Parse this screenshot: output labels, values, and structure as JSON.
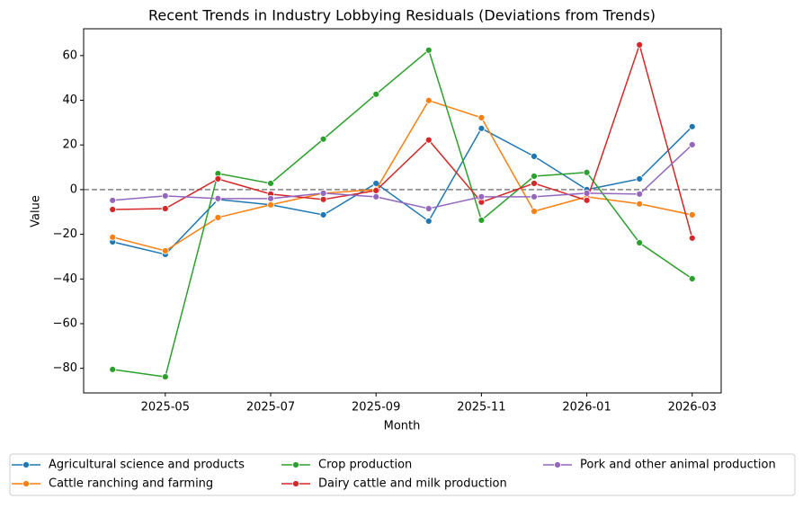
{
  "chart_data": {
    "type": "line",
    "title": "Recent Trends in Industry Lobbying Residuals (Deviations from Trends)",
    "x_label": "Month",
    "y_label": "Value",
    "x": [
      "2025-04",
      "2025-05",
      "2025-06",
      "2025-07",
      "2025-08",
      "2025-09",
      "2025-10",
      "2025-11",
      "2025-12",
      "2026-01",
      "2026-02",
      "2026-03"
    ],
    "xticks": [
      "2025-05",
      "2025-07",
      "2025-09",
      "2025-11",
      "2026-01",
      "2026-03"
    ],
    "ylim": [
      -91,
      72
    ],
    "yticks": [
      {
        "value": -80,
        "label": "−80"
      },
      {
        "value": -60,
        "label": "−60"
      },
      {
        "value": -40,
        "label": "−40"
      },
      {
        "value": -20,
        "label": "−20"
      },
      0,
      20,
      40,
      60
    ],
    "hline": 0,
    "legend": "lower center",
    "series": [
      {
        "name": "Agricultural science and products",
        "color": "#1f77b4",
        "values": [
          -23.4,
          -29,
          -4.4,
          -6.8,
          -11.3,
          2.8,
          -14.1,
          27.4,
          14.9,
          0,
          4.8,
          28.2
        ]
      },
      {
        "name": "Cattle ranching and farming",
        "color": "#ff7f0e",
        "values": [
          -21.3,
          -27.4,
          -12.5,
          -6.8,
          -1.6,
          0,
          39.9,
          32.2,
          -9.7,
          -3.2,
          -6.4,
          -11.3
        ]
      },
      {
        "name": "Crop production",
        "color": "#2ca02c",
        "values": [
          -80.5,
          -83.8,
          7.2,
          2.8,
          22.6,
          42.7,
          62.4,
          -13.7,
          6,
          7.7,
          -23.8,
          -39.9
        ]
      },
      {
        "name": "Dairy cattle and milk production",
        "color": "#d62728",
        "values": [
          -8.9,
          -8.5,
          4.8,
          -2,
          -4.4,
          -0.4,
          22.2,
          -5.6,
          2.8,
          -4.8,
          64.8,
          -21.7
        ]
      },
      {
        "name": "Pork and other animal production",
        "color": "#9467bd",
        "values": [
          -4.8,
          -2.8,
          -4,
          -4,
          -1.6,
          -3.2,
          -8.5,
          -3.2,
          -3.2,
          -1.6,
          -2,
          20.1
        ]
      }
    ]
  }
}
